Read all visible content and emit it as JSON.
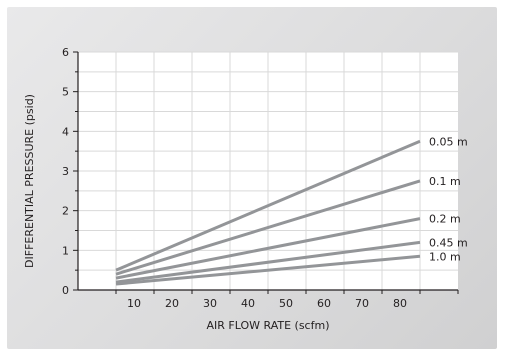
{
  "chart_data": {
    "type": "line",
    "title": "",
    "xlabel": "AIR FLOW RATE (scfm)",
    "ylabel": "DIFFERENTIAL PRESSURE (psid)",
    "xlim": [
      0,
      100
    ],
    "ylim": [
      0,
      6
    ],
    "x_ticks": [
      10,
      20,
      30,
      40,
      50,
      60,
      70,
      80
    ],
    "y_ticks": [
      0,
      1,
      2,
      3,
      4,
      5,
      6
    ],
    "grid": true,
    "series": [
      {
        "name": "0.05 m",
        "x": [
          10,
          90
        ],
        "y": [
          0.5,
          3.75
        ]
      },
      {
        "name": "0.1 m",
        "x": [
          10,
          90
        ],
        "y": [
          0.4,
          2.75
        ]
      },
      {
        "name": "0.2 m",
        "x": [
          10,
          90
        ],
        "y": [
          0.3,
          1.8
        ]
      },
      {
        "name": "0.45 m",
        "x": [
          10,
          90
        ],
        "y": [
          0.2,
          1.2
        ]
      },
      {
        "name": "1.0 m",
        "x": [
          10,
          90
        ],
        "y": [
          0.15,
          0.85
        ]
      }
    ],
    "colors": {
      "line": "#939598",
      "grid": "#d9d9d9",
      "plot_bg": "#ffffff",
      "axis": "#231f20"
    }
  }
}
